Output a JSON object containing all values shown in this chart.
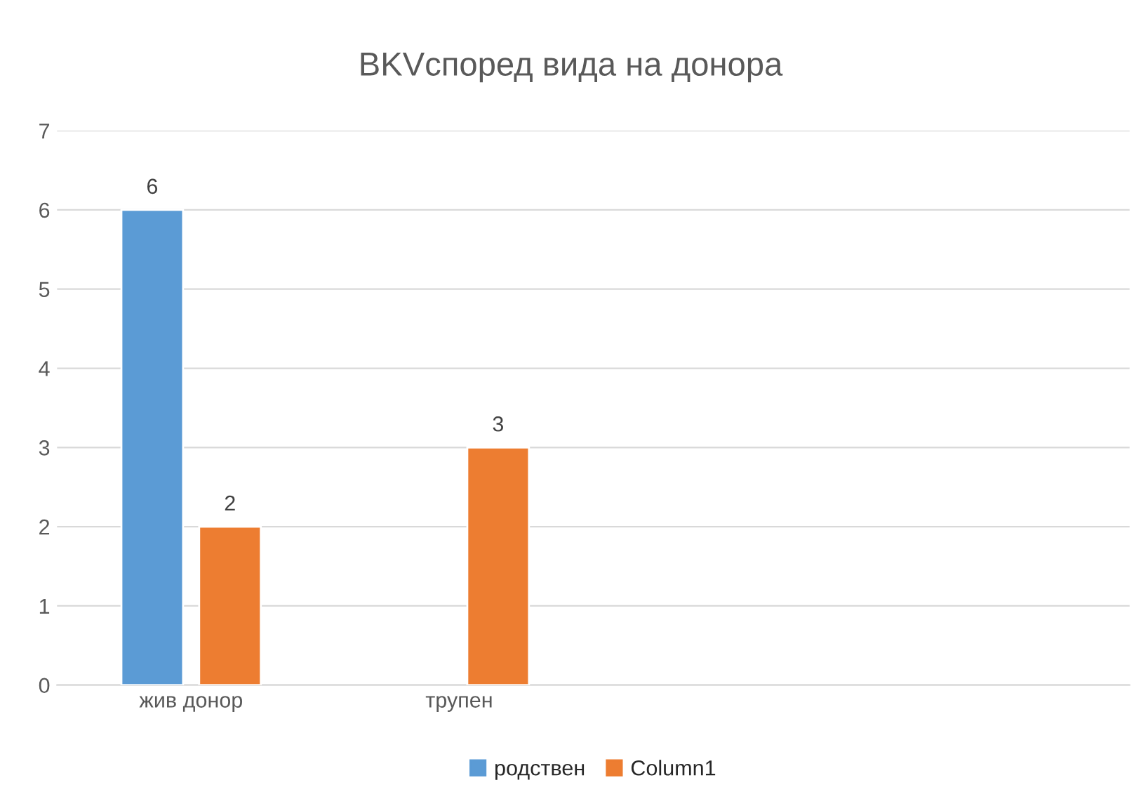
{
  "chart_data": {
    "type": "bar",
    "title": "BKVспоред вида на донора",
    "categories": [
      "жив донор",
      "трупен",
      null,
      null
    ],
    "series": [
      {
        "name": "родствен",
        "color": "#5b9bd5",
        "values": [
          6,
          null,
          null,
          null
        ]
      },
      {
        "name": "Column1",
        "color": "#ed7d31",
        "values": [
          2,
          3,
          null,
          null
        ]
      }
    ],
    "ylim": [
      0,
      7
    ],
    "yticks": [
      0,
      1,
      2,
      3,
      4,
      5,
      6,
      7
    ],
    "grid": "y",
    "legend": "bottom",
    "data_labels": true
  }
}
